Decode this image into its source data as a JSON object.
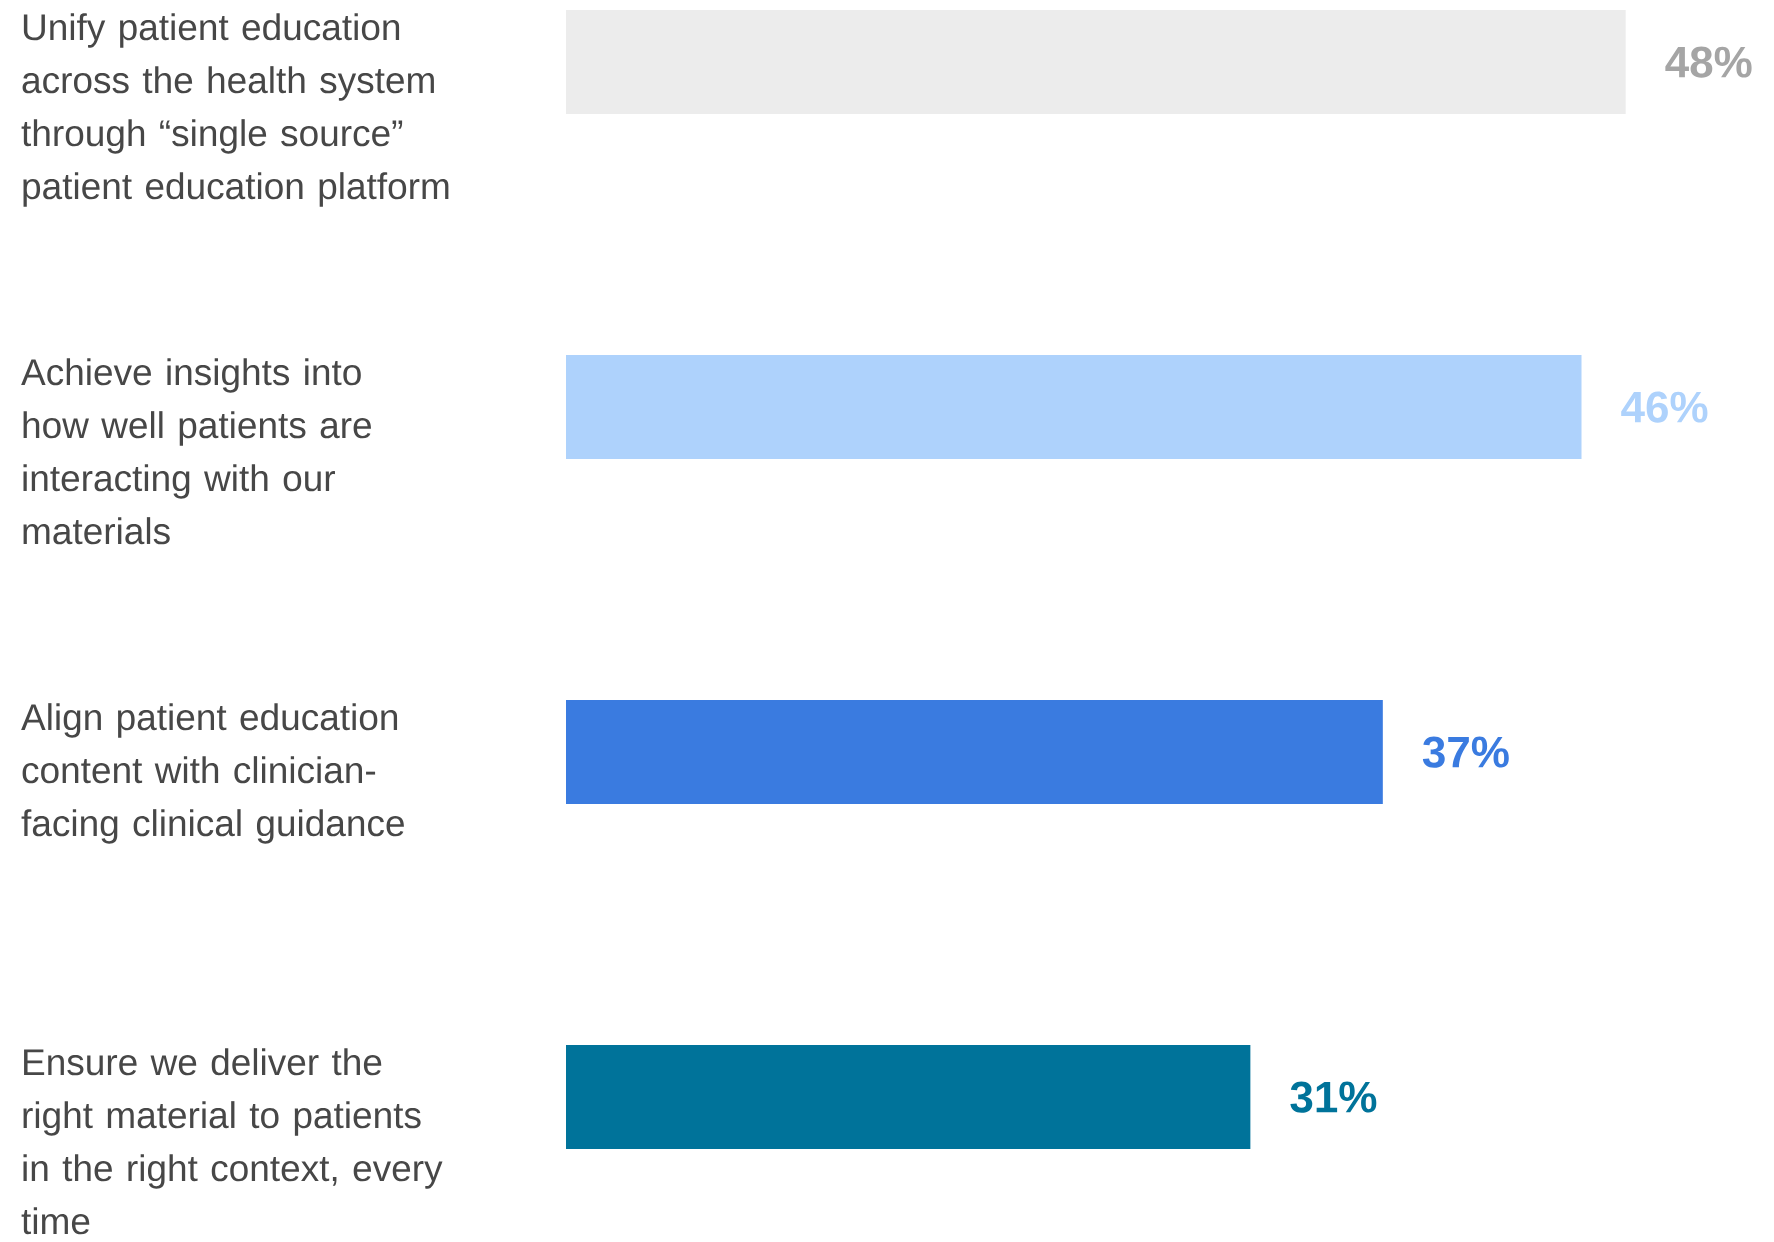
{
  "chart_data": {
    "type": "bar",
    "orientation": "horizontal",
    "categories": [
      "Unify patient education across the health system through “single source” patient education platform",
      "Achieve insights into how well patients are interacting with our materials",
      "Align patient education content with clinician-facing clinical guidance",
      "Ensure we deliver the right material to patients in the right context, every time"
    ],
    "values": [
      48,
      46,
      37,
      31
    ],
    "colors": [
      "#ececec",
      "#aed2fc",
      "#3a7be0",
      "#00739a"
    ],
    "data_labels": true,
    "value_labels": [
      "48%",
      "46%",
      "37%",
      "31%"
    ]
  }
}
